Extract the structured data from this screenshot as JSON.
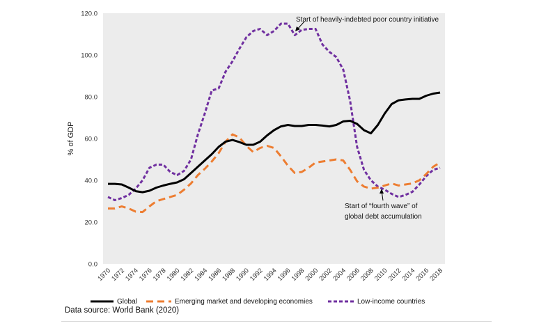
{
  "chart_data": {
    "type": "line",
    "ylabel": "% of GDP",
    "xlabel": "",
    "ylim": [
      0,
      120
    ],
    "y_ticks": [
      "0.0",
      "20.0",
      "40.0",
      "60.0",
      "80.0",
      "100.0",
      "120.0"
    ],
    "x_ticks": [
      "1970",
      "1972",
      "1974",
      "1976",
      "1978",
      "1980",
      "1982",
      "1984",
      "1986",
      "1988",
      "1990",
      "1992",
      "1994",
      "1996",
      "1998",
      "2000",
      "2002",
      "2004",
      "2006",
      "2008",
      "2010",
      "2012",
      "2014",
      "2016",
      "2018"
    ],
    "x": [
      1970,
      1971,
      1972,
      1973,
      1974,
      1975,
      1976,
      1977,
      1978,
      1979,
      1980,
      1981,
      1982,
      1983,
      1984,
      1985,
      1986,
      1987,
      1988,
      1989,
      1990,
      1991,
      1992,
      1993,
      1994,
      1995,
      1996,
      1997,
      1998,
      1999,
      2000,
      2001,
      2002,
      2003,
      2004,
      2005,
      2006,
      2007,
      2008,
      2009,
      2010,
      2011,
      2012,
      2013,
      2014,
      2015,
      2016,
      2017,
      2018
    ],
    "series": [
      {
        "name": "Global",
        "color": "#000000",
        "values": [
          38.3,
          38.3,
          38.0,
          36.5,
          34.8,
          34.3,
          35.0,
          36.5,
          37.5,
          38.3,
          39.0,
          40.5,
          43.5,
          46.5,
          49.5,
          52.5,
          56.0,
          58.5,
          59.3,
          58.3,
          57.0,
          57.0,
          58.5,
          61.5,
          64.0,
          65.8,
          66.5,
          66.0,
          66.0,
          66.5,
          66.5,
          66.2,
          65.8,
          66.5,
          68.2,
          68.5,
          67.0,
          64.0,
          62.5,
          66.5,
          72.0,
          76.5,
          78.3,
          78.7,
          79.0,
          79.0,
          80.5,
          81.5,
          82.0
        ]
      },
      {
        "name": "Emerging market and developing economies",
        "color": "#ED7D31",
        "values": [
          26.5,
          26.5,
          27.5,
          26.5,
          25.0,
          24.8,
          27.5,
          30.0,
          31.0,
          32.0,
          33.0,
          35.5,
          38.5,
          42.5,
          45.5,
          49.0,
          53.0,
          58.5,
          62.0,
          60.5,
          56.5,
          53.5,
          55.5,
          56.5,
          55.5,
          51.5,
          47.0,
          43.5,
          44.0,
          46.0,
          48.5,
          49.0,
          49.5,
          50.0,
          49.5,
          45.0,
          39.5,
          37.0,
          36.0,
          36.5,
          37.5,
          38.5,
          37.5,
          38.0,
          38.5,
          40.0,
          43.0,
          46.5,
          48.5
        ]
      },
      {
        "name": "Low-income countries",
        "color": "#7030A0",
        "values": [
          32.0,
          30.5,
          31.5,
          33.0,
          36.0,
          40.0,
          46.0,
          47.5,
          47.5,
          44.0,
          42.5,
          44.5,
          50.0,
          62.0,
          72.0,
          83.0,
          84.0,
          92.0,
          97.0,
          103.0,
          108.5,
          111.5,
          112.5,
          109.5,
          111.5,
          115.0,
          115.0,
          109.5,
          112.0,
          112.5,
          112.5,
          105.0,
          101.5,
          99.0,
          93.0,
          78.0,
          56.0,
          45.0,
          40.0,
          37.0,
          35.5,
          33.5,
          32.0,
          33.0,
          34.5,
          38.0,
          42.0,
          45.0,
          46.0
        ]
      }
    ],
    "legend_position": "bottom",
    "grid": false,
    "annotations": [
      {
        "text": "Start of heavily-indebted poor country initiative",
        "x": 1996,
        "y": 113
      },
      {
        "text": "Start of “fourth wave” of",
        "x": 2009,
        "y": 34
      },
      {
        "text": "global debt accumulation",
        "x": 2009,
        "y": 34
      }
    ]
  },
  "source": "Data source: World Bank (2020)"
}
